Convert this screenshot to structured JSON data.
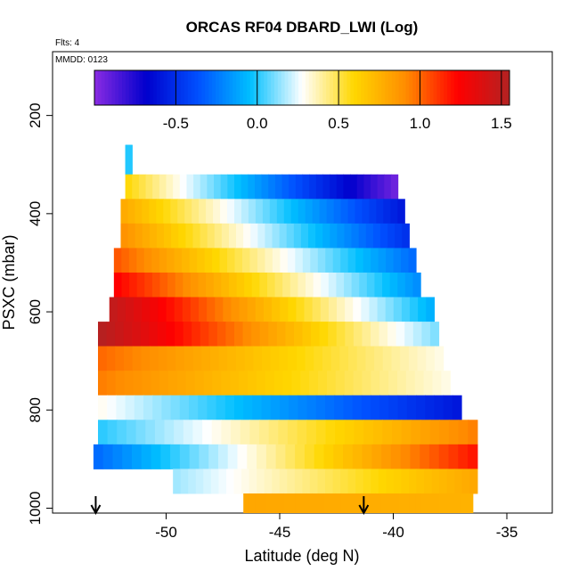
{
  "chart_data": {
    "type": "heatmap",
    "title": "ORCAS RF04 DBARD_LWI (Log)",
    "annotations": {
      "flights": "Flts: 4",
      "date": "MMDD: 0123"
    },
    "xlabel": "Latitude (deg N)",
    "ylabel": "PSXC (mbar)",
    "xlim": [
      -55,
      -33
    ],
    "ylim": [
      1010,
      70
    ],
    "x_ticks": [
      -50,
      -45,
      -40,
      -35
    ],
    "x_tick_labels": [
      "-50",
      "-45",
      "-40",
      "-35"
    ],
    "y_ticks": [
      200,
      400,
      600,
      800,
      1000
    ],
    "y_tick_labels": [
      "200",
      "400",
      "600",
      "800",
      "1000"
    ],
    "colorbar": {
      "range": [
        -1.0,
        1.55
      ],
      "ticks": [
        -0.5,
        0.0,
        0.5,
        1.0,
        1.5
      ],
      "tick_labels": [
        "-0.5",
        "0.0",
        "0.5",
        "1.0",
        "1.5"
      ],
      "colors": [
        "#8a2be2",
        "#0000cd",
        "#0050ff",
        "#00bfff",
        "#ffffff",
        "#ffd700",
        "#ff8c00",
        "#ff0000",
        "#b22222"
      ]
    },
    "arrows_latitude": [
      -53.1,
      -41.3
    ],
    "bands": [
      {
        "p_top": 260,
        "p_bot": 320,
        "lat_start": -51.8,
        "lat_end": -51.5,
        "v_start": 0.0,
        "v_end": 0.0
      },
      {
        "p_top": 320,
        "p_bot": 370,
        "lat_start": -51.8,
        "lat_end": -39.8,
        "v_start": 0.6,
        "v_end": -0.95
      },
      {
        "p_top": 370,
        "p_bot": 420,
        "lat_start": -52.0,
        "lat_end": -39.5,
        "v_start": 0.8,
        "v_end": -0.6
      },
      {
        "p_top": 420,
        "p_bot": 470,
        "lat_start": -52.0,
        "lat_end": -39.3,
        "v_start": 0.9,
        "v_end": -0.5
      },
      {
        "p_top": 470,
        "p_bot": 520,
        "lat_start": -52.3,
        "lat_end": -39.0,
        "v_start": 1.05,
        "v_end": -0.3
      },
      {
        "p_top": 520,
        "p_bot": 570,
        "lat_start": -52.3,
        "lat_end": -38.8,
        "v_start": 1.25,
        "v_end": -0.2
      },
      {
        "p_top": 570,
        "p_bot": 620,
        "lat_start": -52.5,
        "lat_end": -38.2,
        "v_start": 1.5,
        "v_end": -0.1
      },
      {
        "p_top": 620,
        "p_bot": 670,
        "lat_start": -53.0,
        "lat_end": -38.0,
        "v_start": 1.55,
        "v_end": 0.1
      },
      {
        "p_top": 670,
        "p_bot": 720,
        "lat_start": -53.0,
        "lat_end": -37.8,
        "v_start": 1.0,
        "v_end": 0.3
      },
      {
        "p_top": 720,
        "p_bot": 770,
        "lat_start": -53.0,
        "lat_end": -37.5,
        "v_start": 0.95,
        "v_end": 0.3
      },
      {
        "p_top": 770,
        "p_bot": 820,
        "lat_start": -53.0,
        "lat_end": -37.0,
        "v_start": 0.3,
        "v_end": -0.6
      },
      {
        "p_top": 820,
        "p_bot": 870,
        "lat_start": -53.0,
        "lat_end": -36.3,
        "v_start": 0.0,
        "v_end": 0.95
      },
      {
        "p_top": 870,
        "p_bot": 920,
        "lat_start": -53.2,
        "lat_end": -36.3,
        "v_start": -0.3,
        "v_end": 1.2
      },
      {
        "p_top": 920,
        "p_bot": 970,
        "lat_start": -49.7,
        "lat_end": -36.3,
        "v_start": 0.15,
        "v_end": 0.8
      },
      {
        "p_top": 970,
        "p_bot": 1010,
        "lat_start": -46.6,
        "lat_end": -36.5,
        "v_start": 0.8,
        "v_end": 0.75
      }
    ]
  }
}
